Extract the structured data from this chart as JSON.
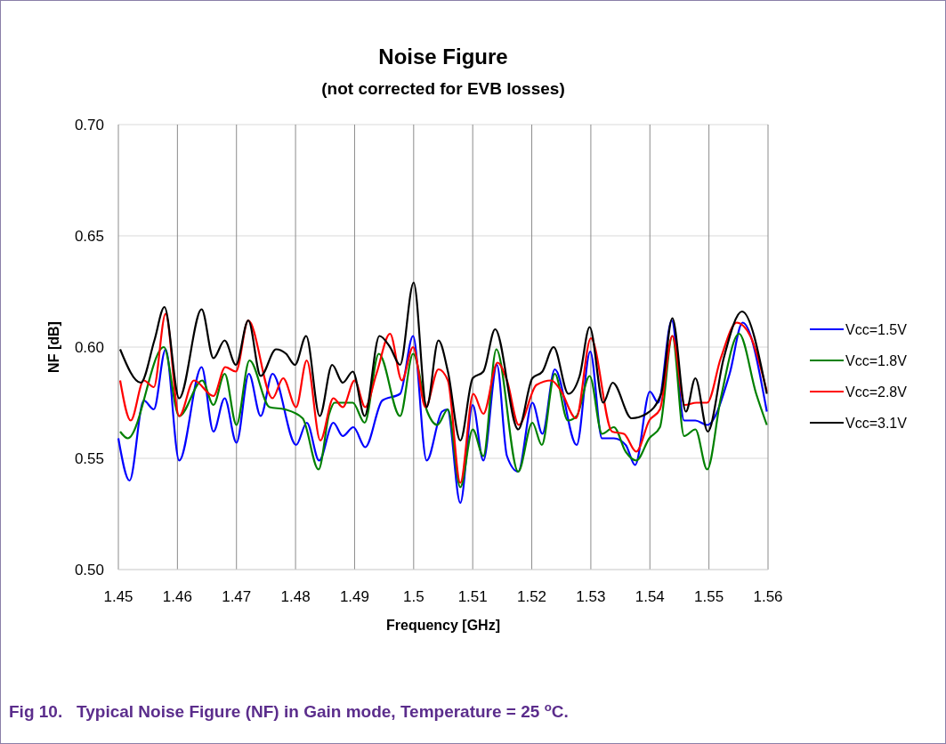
{
  "chart_data": {
    "type": "line",
    "title": "Noise Figure",
    "subtitle": "(not corrected for EVB losses)",
    "xlabel": "Frequency [GHz]",
    "ylabel": "NF [dB]",
    "annotations": [
      "Fig 10.   Typical Noise Figure (NF) in Gain mode, Temperature = 25 $^{o}$C."
    ],
    "xlim": [
      1.45,
      1.56
    ],
    "xticks": [
      1.45,
      1.46,
      1.47,
      1.48,
      1.49,
      1.5,
      1.51,
      1.52,
      1.53,
      1.54,
      1.55,
      1.56
    ],
    "ylim": [
      0.5,
      0.7
    ],
    "yticks": [
      {
        "value": 0.5,
        "label": "0.50"
      },
      {
        "value": 0.55,
        "label": "0.55"
      },
      {
        "value": 0.6,
        "label": "0.60"
      },
      {
        "value": 0.65,
        "label": "0.65"
      },
      {
        "value": 0.7,
        "label": "0.70"
      }
    ],
    "grid": true,
    "legend": "right",
    "marker": "none",
    "line_style": "solid",
    "series": [
      {
        "name": "Vcc=1.5V",
        "color": "#0000ff",
        "x": [
          1.45,
          1.4519,
          1.4543,
          1.456,
          1.458,
          1.4603,
          1.4641,
          1.4661,
          1.468,
          1.47,
          1.4721,
          1.4741,
          1.4761,
          1.4801,
          1.4819,
          1.484,
          1.4864,
          1.488,
          1.4898,
          1.4918,
          1.4947,
          1.4977,
          1.4999,
          1.5022,
          1.5048,
          1.5057,
          1.5079,
          1.51,
          1.5118,
          1.5141,
          1.5158,
          1.5177,
          1.5201,
          1.5218,
          1.5239,
          1.5276,
          1.5299,
          1.5319,
          1.5339,
          1.5359,
          1.5375,
          1.54,
          1.5414,
          1.5437,
          1.5458,
          1.5477,
          1.5497,
          1.5535,
          1.5557,
          1.5598
        ],
        "values": [
          0.559,
          0.54,
          0.576,
          0.572,
          0.599,
          0.549,
          0.591,
          0.562,
          0.577,
          0.557,
          0.588,
          0.569,
          0.588,
          0.556,
          0.566,
          0.549,
          0.566,
          0.56,
          0.564,
          0.555,
          0.576,
          0.579,
          0.605,
          0.549,
          0.571,
          0.572,
          0.53,
          0.574,
          0.549,
          0.592,
          0.551,
          0.544,
          0.575,
          0.561,
          0.59,
          0.556,
          0.598,
          0.559,
          0.559,
          0.556,
          0.547,
          0.58,
          0.575,
          0.612,
          0.567,
          0.567,
          0.565,
          0.588,
          0.611,
          0.571
        ]
      },
      {
        "name": "Vcc=1.8V",
        "color": "#008000",
        "x": [
          1.4503,
          1.4516,
          1.4577,
          1.4603,
          1.4642,
          1.4661,
          1.468,
          1.47,
          1.4722,
          1.4756,
          1.4782,
          1.4812,
          1.4839,
          1.4857,
          1.4866,
          1.4897,
          1.4917,
          1.4941,
          1.4977,
          1.4999,
          1.5023,
          1.504,
          1.5058,
          1.5079,
          1.51,
          1.5118,
          1.514,
          1.5177,
          1.5201,
          1.5217,
          1.5239,
          1.5261,
          1.5276,
          1.5298,
          1.5319,
          1.5339,
          1.5359,
          1.5377,
          1.5399,
          1.5417,
          1.5438,
          1.5458,
          1.5477,
          1.5497,
          1.552,
          1.5551,
          1.558,
          1.5598
        ],
        "values": [
          0.562,
          0.559,
          0.6,
          0.569,
          0.585,
          0.574,
          0.588,
          0.565,
          0.594,
          0.573,
          0.572,
          0.568,
          0.545,
          0.57,
          0.575,
          0.575,
          0.566,
          0.597,
          0.569,
          0.597,
          0.571,
          0.565,
          0.572,
          0.537,
          0.563,
          0.551,
          0.599,
          0.544,
          0.566,
          0.556,
          0.588,
          0.567,
          0.569,
          0.587,
          0.561,
          0.564,
          0.553,
          0.549,
          0.559,
          0.564,
          0.605,
          0.56,
          0.563,
          0.545,
          0.577,
          0.606,
          0.579,
          0.565
        ]
      },
      {
        "name": "Vcc=2.8V",
        "color": "#ff0000",
        "x": [
          1.4503,
          1.4521,
          1.4543,
          1.456,
          1.458,
          1.4603,
          1.4628,
          1.4661,
          1.4681,
          1.4699,
          1.472,
          1.4761,
          1.4779,
          1.4801,
          1.4819,
          1.4842,
          1.4864,
          1.488,
          1.49,
          1.4918,
          1.4937,
          1.496,
          1.498,
          1.4999,
          1.502,
          1.5042,
          1.5058,
          1.5079,
          1.5101,
          1.5118,
          1.5142,
          1.5158,
          1.5178,
          1.5208,
          1.5233,
          1.5248,
          1.5275,
          1.53,
          1.5336,
          1.5356,
          1.5377,
          1.5399,
          1.5417,
          1.5438,
          1.5459,
          1.5479,
          1.5497,
          1.552,
          1.5547,
          1.557,
          1.5598
        ],
        "values": [
          0.585,
          0.567,
          0.585,
          0.582,
          0.615,
          0.569,
          0.585,
          0.578,
          0.591,
          0.589,
          0.612,
          0.577,
          0.586,
          0.573,
          0.594,
          0.558,
          0.577,
          0.573,
          0.585,
          0.573,
          0.588,
          0.606,
          0.585,
          0.6,
          0.573,
          0.59,
          0.585,
          0.539,
          0.579,
          0.57,
          0.593,
          0.585,
          0.565,
          0.583,
          0.585,
          0.581,
          0.568,
          0.604,
          0.562,
          0.561,
          0.553,
          0.567,
          0.572,
          0.605,
          0.574,
          0.575,
          0.575,
          0.595,
          0.611,
          0.605,
          0.58
        ]
      },
      {
        "name": "Vcc=3.1V",
        "color": "#000000",
        "x": [
          1.4503,
          1.4538,
          1.4561,
          1.4578,
          1.4603,
          1.4641,
          1.4661,
          1.468,
          1.4699,
          1.472,
          1.4741,
          1.4767,
          1.4784,
          1.4799,
          1.4818,
          1.4841,
          1.4862,
          1.488,
          1.4897,
          1.4917,
          1.4942,
          1.496,
          1.4977,
          1.5,
          1.5022,
          1.5042,
          1.5058,
          1.5079,
          1.51,
          1.5118,
          1.5138,
          1.5177,
          1.5201,
          1.5218,
          1.5237,
          1.5262,
          1.5281,
          1.5298,
          1.5321,
          1.5337,
          1.5369,
          1.5394,
          1.5419,
          1.5438,
          1.5461,
          1.5477,
          1.5498,
          1.5525,
          1.5556,
          1.5598
        ],
        "values": [
          0.599,
          0.584,
          0.603,
          0.618,
          0.577,
          0.617,
          0.595,
          0.603,
          0.592,
          0.612,
          0.587,
          0.599,
          0.597,
          0.592,
          0.605,
          0.569,
          0.592,
          0.584,
          0.589,
          0.569,
          0.605,
          0.6,
          0.592,
          0.629,
          0.573,
          0.603,
          0.589,
          0.558,
          0.586,
          0.589,
          0.608,
          0.563,
          0.586,
          0.589,
          0.6,
          0.579,
          0.587,
          0.609,
          0.575,
          0.584,
          0.568,
          0.57,
          0.579,
          0.613,
          0.571,
          0.586,
          0.562,
          0.595,
          0.616,
          0.579
        ]
      }
    ]
  }
}
